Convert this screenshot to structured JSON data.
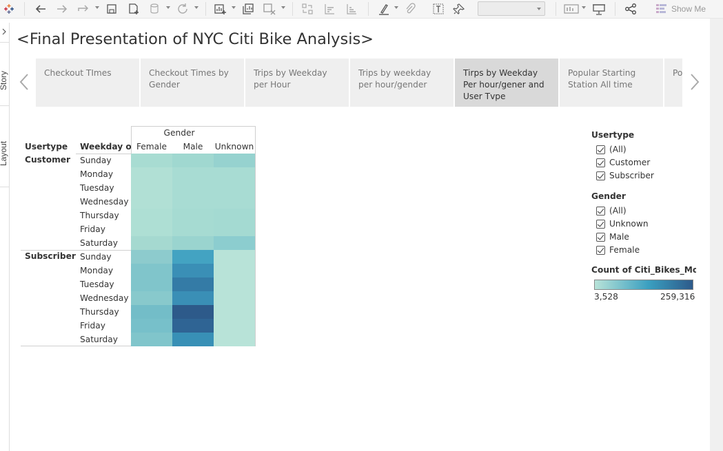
{
  "toolbar": {
    "show_me_label": "Show Me",
    "icons": [
      "tableau-logo-icon",
      "undo-icon",
      "redo-icon",
      "replay-icon",
      "save-icon",
      "new-data-source-icon",
      "pause-updates-icon",
      "refresh-icon",
      "new-worksheet-icon",
      "duplicate-icon",
      "clear-icon",
      "swap-icon",
      "sort-ascending-icon",
      "sort-descending-icon",
      "highlight-icon",
      "attach-icon",
      "label-icon",
      "pin-icon",
      "presentation-icon",
      "share-icon",
      "show-me-icon"
    ]
  },
  "leftbar": {
    "tabs": [
      "Story",
      "Layout"
    ]
  },
  "story": {
    "title": "<Final Presentation of NYC Citi Bike Analysis>",
    "points": [
      "Checkout TImes",
      "Checkout Times by Gender",
      "Trips by Weekday per Hour",
      "Trips by weekday per hour/gender",
      "Tirps by Weekday Per hour/gener and User Tvpe",
      "Popular Starting Station All time",
      "Popular Starting Sta"
    ],
    "active_index": 4
  },
  "crosstab": {
    "column_group": "Gender",
    "row_header_1": "Usertype",
    "row_header_2": "Weekday of..",
    "columns": [
      "Female",
      "Male",
      "Unknown"
    ],
    "groups": [
      {
        "name": "Customer",
        "rows": [
          {
            "day": "Sunday",
            "colors": [
              "#a8dcd2",
              "#a0d8d0",
              "#96d2cf"
            ]
          },
          {
            "day": "Monday",
            "colors": [
              "#b1e0d5",
              "#a8dcd3",
              "#a8dcd3"
            ]
          },
          {
            "day": "Tuesday",
            "colors": [
              "#b1e0d5",
              "#a8dcd3",
              "#a8dcd3"
            ]
          },
          {
            "day": "Wednesday",
            "colors": [
              "#b1e0d5",
              "#a8dcd3",
              "#a8dcd3"
            ]
          },
          {
            "day": "Thursday",
            "colors": [
              "#aedfd4",
              "#a6dbd2",
              "#a4dad2"
            ]
          },
          {
            "day": "Friday",
            "colors": [
              "#aedfd4",
              "#a6dbd2",
              "#a4dad2"
            ]
          },
          {
            "day": "Saturday",
            "colors": [
              "#a5d9d0",
              "#9ad4cf",
              "#8ccdcf"
            ]
          }
        ]
      },
      {
        "name": "Subscriber",
        "rows": [
          {
            "day": "Sunday",
            "colors": [
              "#8dcbcd",
              "#43a3c2",
              "#b8e3d8"
            ]
          },
          {
            "day": "Monday",
            "colors": [
              "#80c5cb",
              "#3a8fb6",
              "#b8e3d8"
            ]
          },
          {
            "day": "Tuesday",
            "colors": [
              "#80c5cb",
              "#347ba6",
              "#b8e3d8"
            ]
          },
          {
            "day": "Wednesday",
            "colors": [
              "#88c9cc",
              "#3a8fb6",
              "#b8e3d8"
            ]
          },
          {
            "day": "Thursday",
            "colors": [
              "#73bdc8",
              "#2d5a8a",
              "#b8e3d8"
            ]
          },
          {
            "day": "Friday",
            "colors": [
              "#77c0ca",
              "#2f6494",
              "#b8e3d8"
            ]
          },
          {
            "day": "Saturday",
            "colors": [
              "#80c5cb",
              "#3890b6",
              "#b8e3d8"
            ]
          }
        ]
      }
    ]
  },
  "filters": {
    "usertype": {
      "title": "Usertype",
      "items": [
        "(All)",
        "Customer",
        "Subscriber"
      ]
    },
    "gender": {
      "title": "Gender",
      "items": [
        "(All)",
        "Unknown",
        "Male",
        "Female"
      ]
    }
  },
  "legend": {
    "title": "Count of Citi_Bikes_Modi..",
    "min_label": "3,528",
    "max_label": "259,316",
    "color_start": "#b8e3d8",
    "color_mid": "#3a9fc0",
    "color_end": "#2d5a8a"
  }
}
